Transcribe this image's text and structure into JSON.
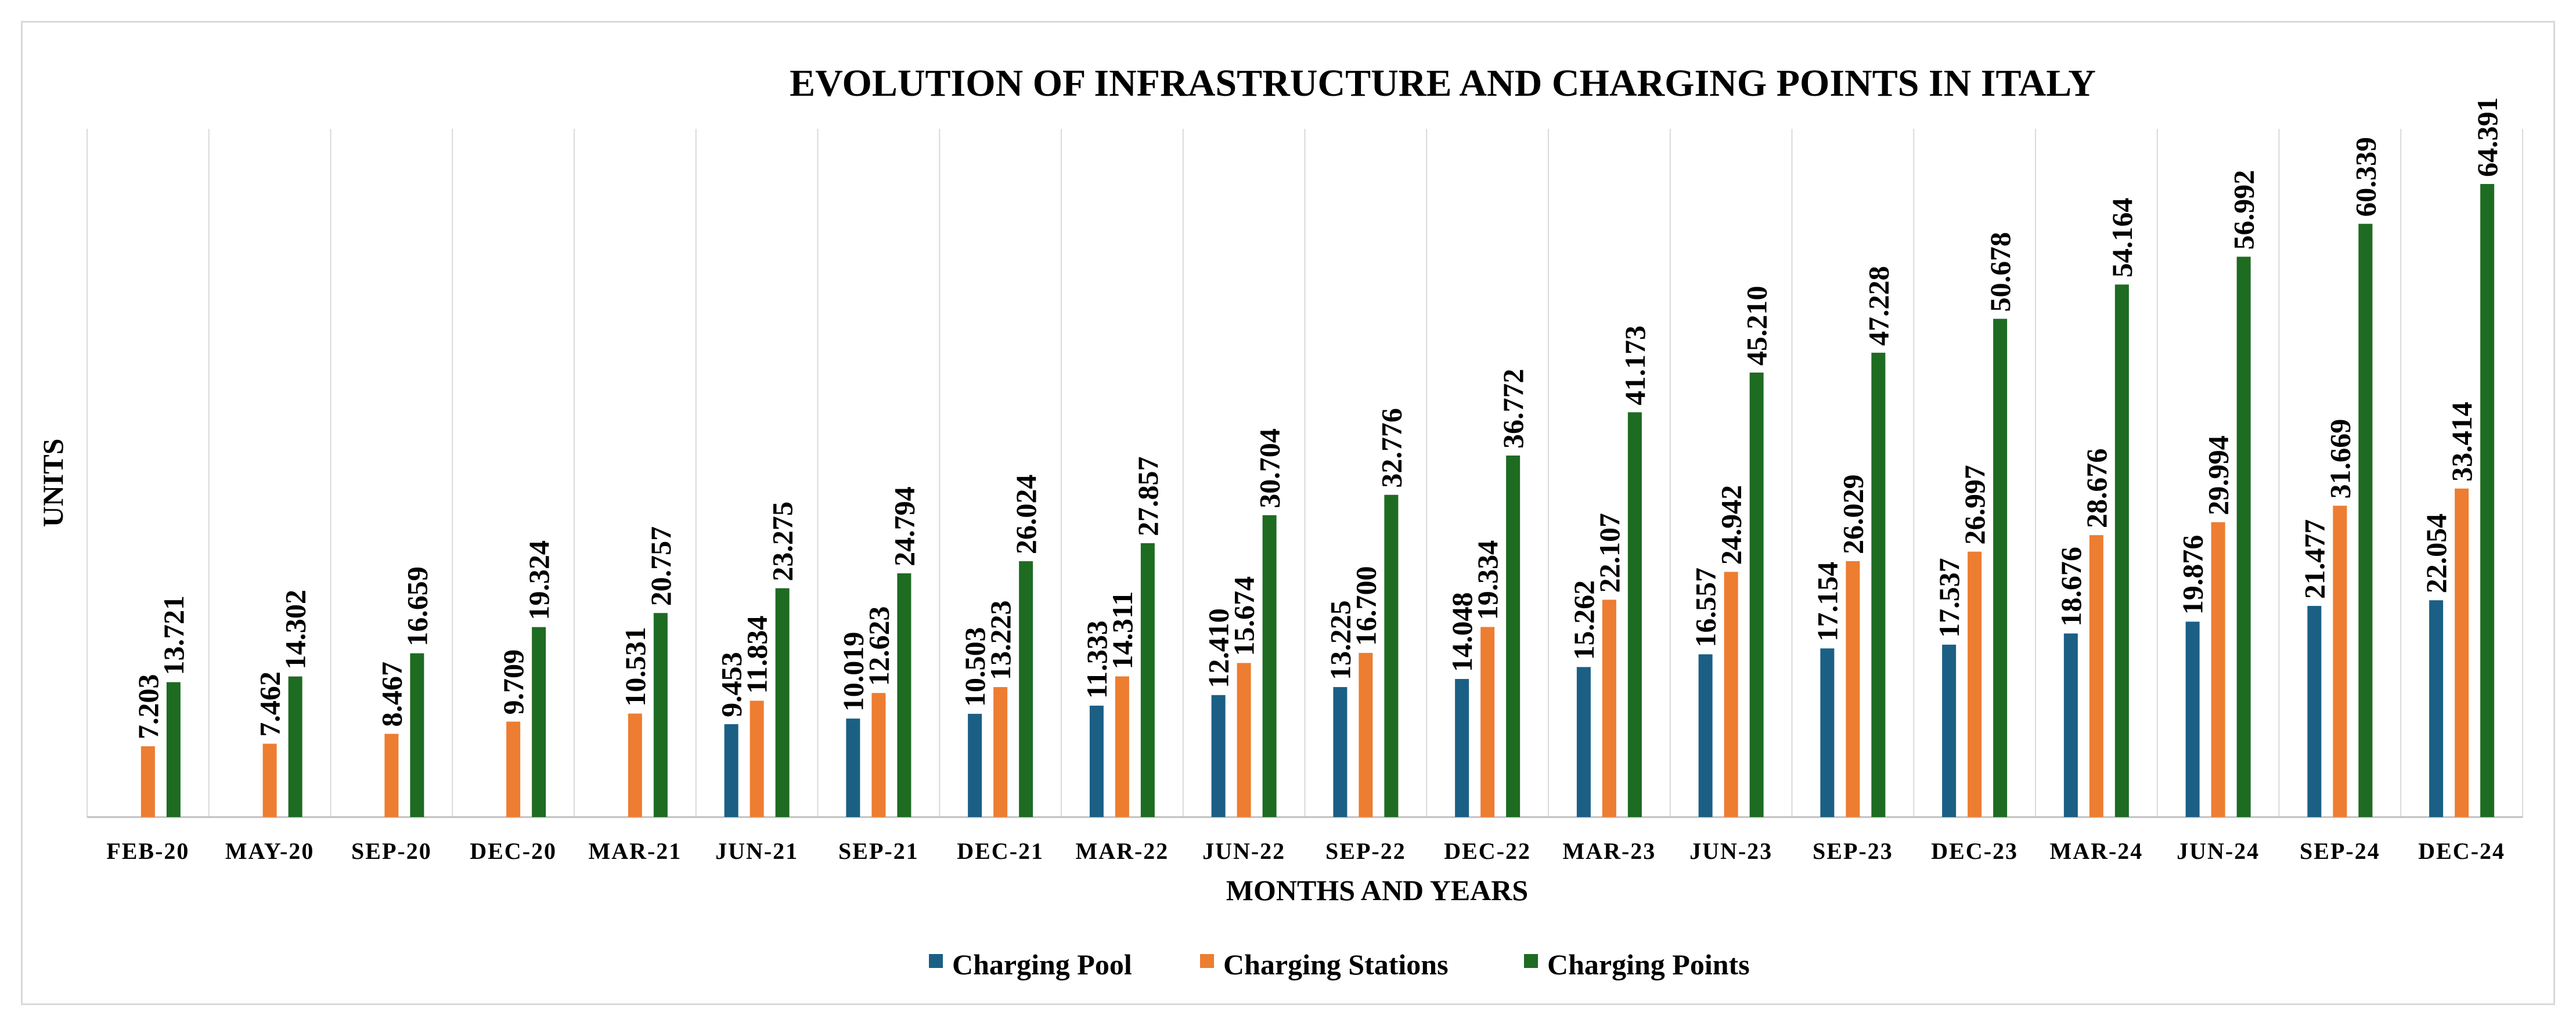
{
  "chart_data": {
    "type": "bar",
    "title": "EVOLUTION OF INFRASTRUCTURE AND CHARGING POINTS IN ITALY",
    "xlabel": "MONTHS AND YEARS",
    "ylabel": "UNITS",
    "ylim": [
      0,
      70000
    ],
    "grid": "vertical category separators",
    "legend_position": "bottom",
    "categories": [
      "FEB-20",
      "MAY-20",
      "SEP-20",
      "DEC-20",
      "MAR-21",
      "JUN-21",
      "SEP-21",
      "DEC-21",
      "MAR-22",
      "JUN-22",
      "SEP-22",
      "DEC-22",
      "MAR-23",
      "JUN-23",
      "SEP-23",
      "DEC-23",
      "MAR-24",
      "JUN-24",
      "SEP-24",
      "DEC-24"
    ],
    "series": [
      {
        "name": "Charging Pool",
        "color": "#1b5f85",
        "values": [
          null,
          null,
          null,
          null,
          null,
          9453,
          10019,
          10503,
          11333,
          12410,
          13225,
          14048,
          15262,
          16557,
          17154,
          17537,
          18676,
          19876,
          21477,
          22054
        ],
        "labels": [
          "",
          "",
          "",
          "",
          "",
          "9.453",
          "10.019",
          "10.503",
          "11.333",
          "12.410",
          "13.225",
          "14.048",
          "15.262",
          "16.557",
          "17.154",
          "17.537",
          "18.676",
          "19.876",
          "21.477",
          "22.054"
        ]
      },
      {
        "name": "Charging Stations",
        "color": "#ed7d31",
        "values": [
          7203,
          7462,
          8467,
          9709,
          10531,
          11834,
          12623,
          13223,
          14311,
          15674,
          16700,
          19334,
          22107,
          24942,
          26029,
          26997,
          28676,
          29994,
          31669,
          33414
        ],
        "labels": [
          "7.203",
          "7.462",
          "8.467",
          "9.709",
          "10.531",
          "11.834",
          "12.623",
          "13.223",
          "14.311",
          "15.674",
          "16.700",
          "19.334",
          "22.107",
          "24.942",
          "26.029",
          "26.997",
          "28.676",
          "29.994",
          "31.669",
          "33.414"
        ]
      },
      {
        "name": "Charging Points",
        "color": "#1e6b22",
        "values": [
          13721,
          14302,
          16659,
          19324,
          20757,
          23275,
          24794,
          26024,
          27857,
          30704,
          32776,
          36772,
          41173,
          45210,
          47228,
          50678,
          54164,
          56992,
          60339,
          64391
        ],
        "labels": [
          "13.721",
          "14.302",
          "16.659",
          "19.324",
          "20.757",
          "23.275",
          "24.794",
          "26.024",
          "27.857",
          "30.704",
          "32.776",
          "36.772",
          "41.173",
          "45.210",
          "47.228",
          "50.678",
          "54.164",
          "56.992",
          "60.339",
          "64.391"
        ]
      }
    ]
  }
}
